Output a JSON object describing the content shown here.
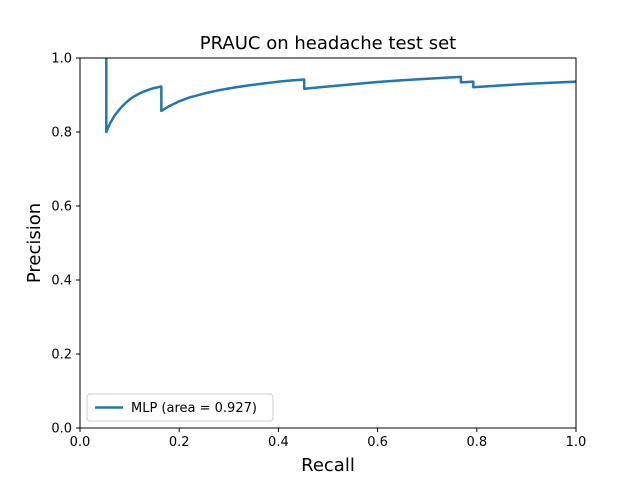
{
  "chart_data": {
    "type": "line",
    "title": "PRAUC on headache test set",
    "xlabel": "Recall",
    "ylabel": "Precision",
    "xlim": [
      0.0,
      1.0
    ],
    "ylim": [
      0.0,
      1.0
    ],
    "xticks": [
      "0.0",
      "0.2",
      "0.4",
      "0.6",
      "0.8",
      "1.0"
    ],
    "yticks": [
      "0.0",
      "0.2",
      "0.4",
      "0.6",
      "0.8",
      "1.0"
    ],
    "grid": false,
    "legend_position": "lower-left",
    "series": [
      {
        "name": "MLP (area = 0.927)",
        "color": "#1f77b4",
        "x": [
          0.053,
          0.053,
          0.06,
          0.07,
          0.08,
          0.09,
          0.1,
          0.11,
          0.12,
          0.13,
          0.14,
          0.15,
          0.164,
          0.164,
          0.18,
          0.2,
          0.22,
          0.25,
          0.28,
          0.31,
          0.34,
          0.37,
          0.4,
          0.43,
          0.452,
          0.452,
          0.5,
          0.55,
          0.6,
          0.65,
          0.7,
          0.74,
          0.768,
          0.768,
          0.793,
          0.793,
          0.85,
          0.9,
          0.95,
          1.0
        ],
        "y": [
          1.0,
          0.8,
          0.822,
          0.845,
          0.862,
          0.876,
          0.888,
          0.897,
          0.904,
          0.91,
          0.915,
          0.919,
          0.923,
          0.857,
          0.87,
          0.883,
          0.893,
          0.904,
          0.913,
          0.92,
          0.926,
          0.931,
          0.936,
          0.94,
          0.942,
          0.917,
          0.923,
          0.929,
          0.935,
          0.94,
          0.944,
          0.947,
          0.949,
          0.934,
          0.936,
          0.921,
          0.926,
          0.93,
          0.933,
          0.936
        ]
      }
    ]
  }
}
